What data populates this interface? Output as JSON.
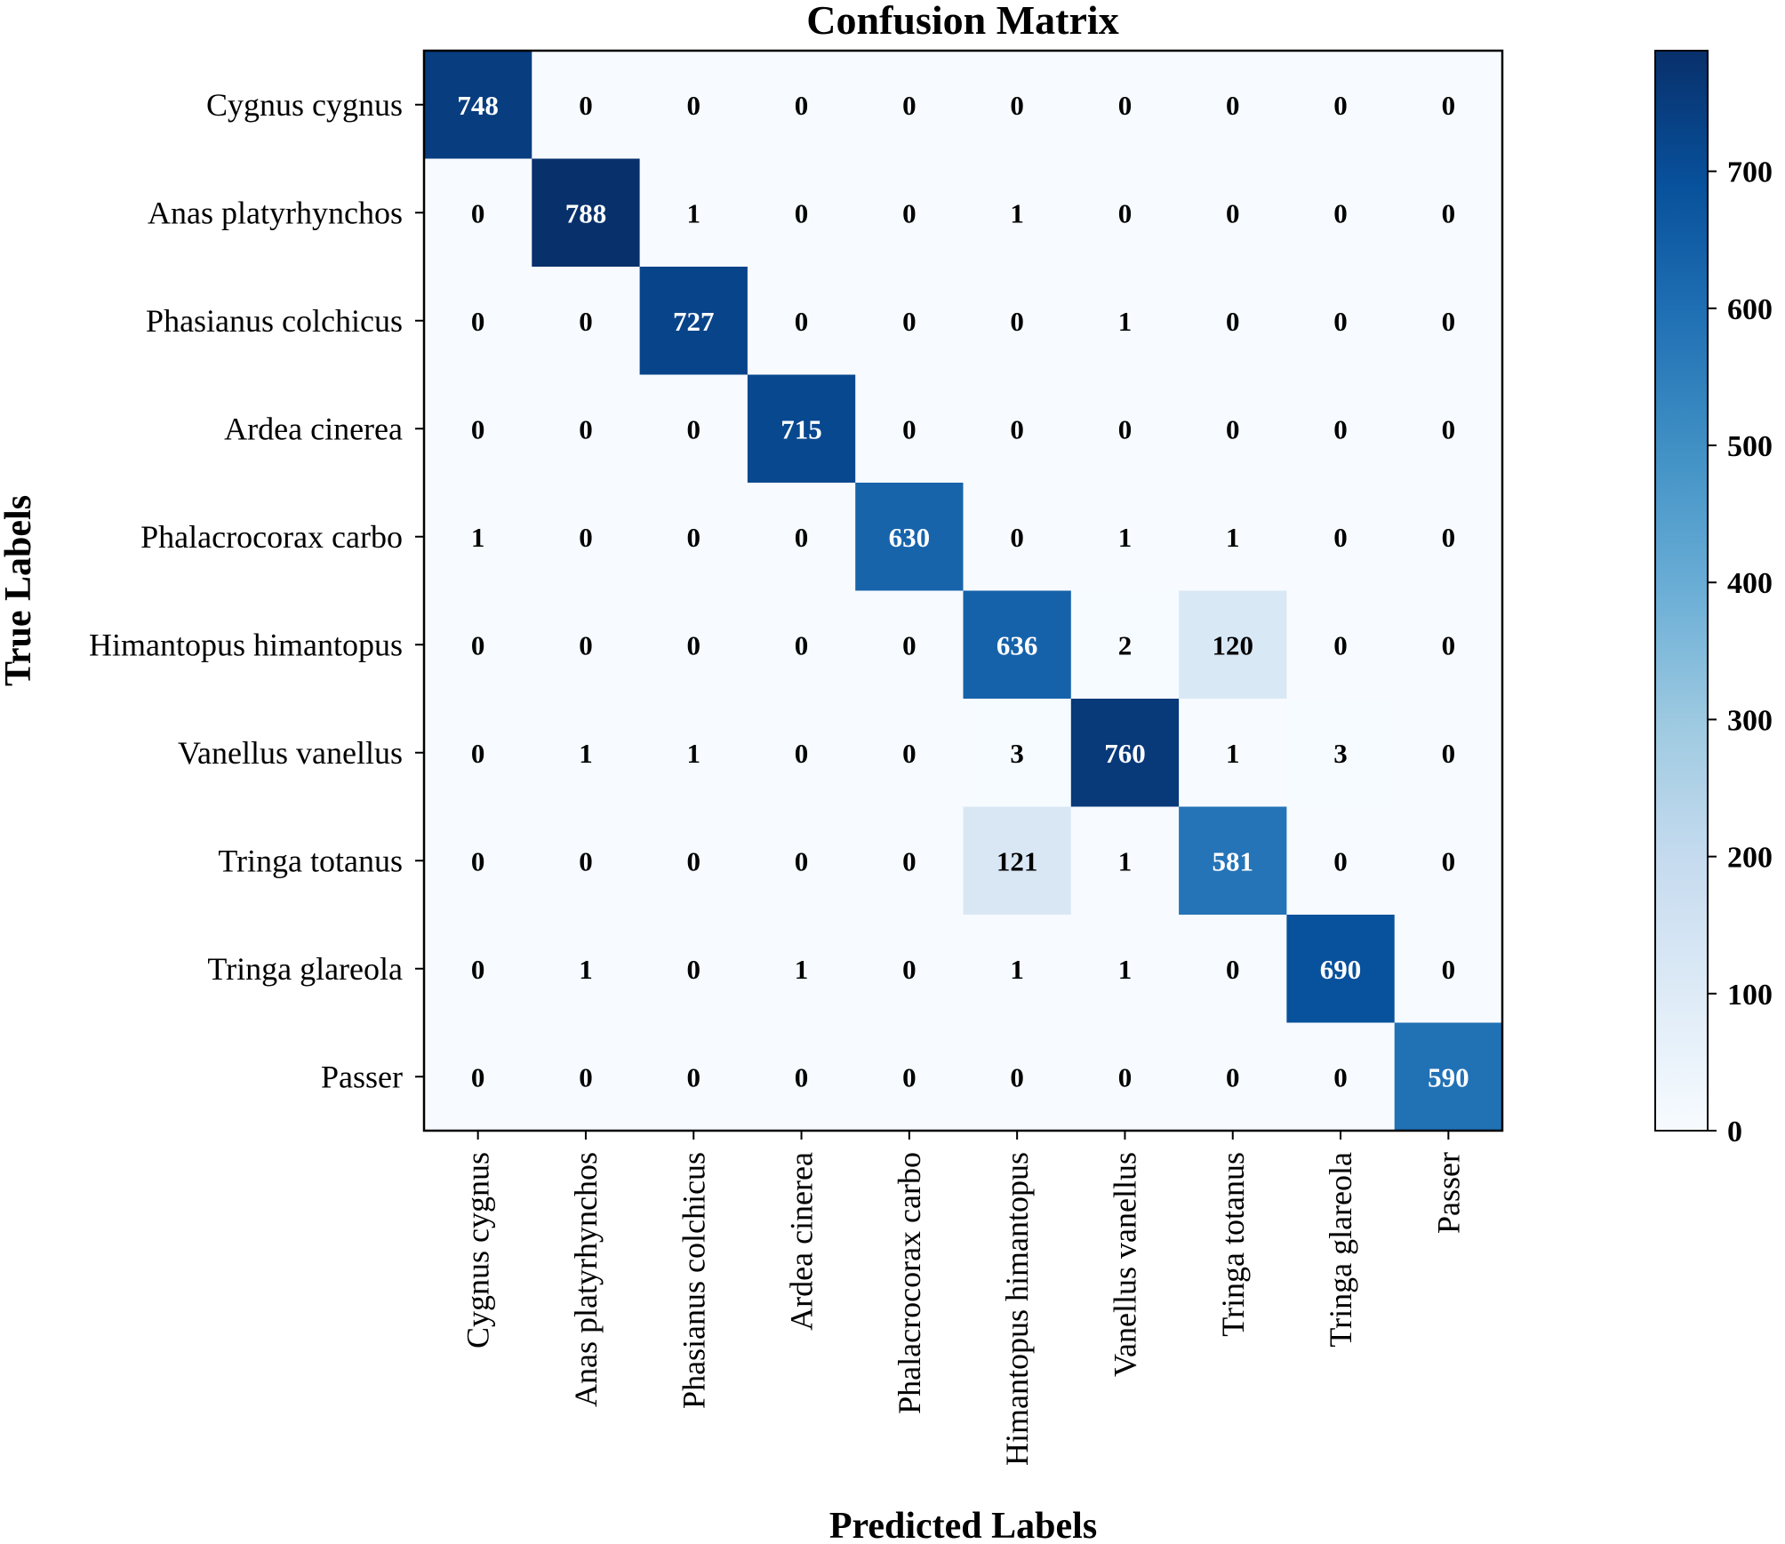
{
  "chart_data": {
    "type": "heatmap",
    "title": "Confusion Matrix",
    "xlabel": "Predicted Labels",
    "ylabel": "True Labels",
    "labels": [
      "Cygnus cygnus",
      "Anas platyrhynchos",
      "Phasianus colchicus",
      "Ardea cinerea",
      "Phalacrocorax carbo",
      "Himantopus himantopus",
      "Vanellus vanellus",
      "Tringa totanus",
      "Tringa glareola",
      "Passer"
    ],
    "matrix": [
      [
        748,
        0,
        0,
        0,
        0,
        0,
        0,
        0,
        0,
        0
      ],
      [
        0,
        788,
        1,
        0,
        0,
        1,
        0,
        0,
        0,
        0
      ],
      [
        0,
        0,
        727,
        0,
        0,
        0,
        1,
        0,
        0,
        0
      ],
      [
        0,
        0,
        0,
        715,
        0,
        0,
        0,
        0,
        0,
        0
      ],
      [
        1,
        0,
        0,
        0,
        630,
        0,
        1,
        1,
        0,
        0
      ],
      [
        0,
        0,
        0,
        0,
        0,
        636,
        2,
        120,
        0,
        0
      ],
      [
        0,
        1,
        1,
        0,
        0,
        3,
        760,
        1,
        3,
        0
      ],
      [
        0,
        0,
        0,
        0,
        0,
        121,
        1,
        581,
        0,
        0
      ],
      [
        0,
        1,
        0,
        1,
        0,
        1,
        1,
        0,
        690,
        0
      ],
      [
        0,
        0,
        0,
        0,
        0,
        0,
        0,
        0,
        0,
        590
      ]
    ],
    "colormap": "Blues",
    "vmin": 0,
    "vmax": 788,
    "colorbar_ticks": [
      0,
      100,
      200,
      300,
      400,
      500,
      600,
      700
    ]
  }
}
